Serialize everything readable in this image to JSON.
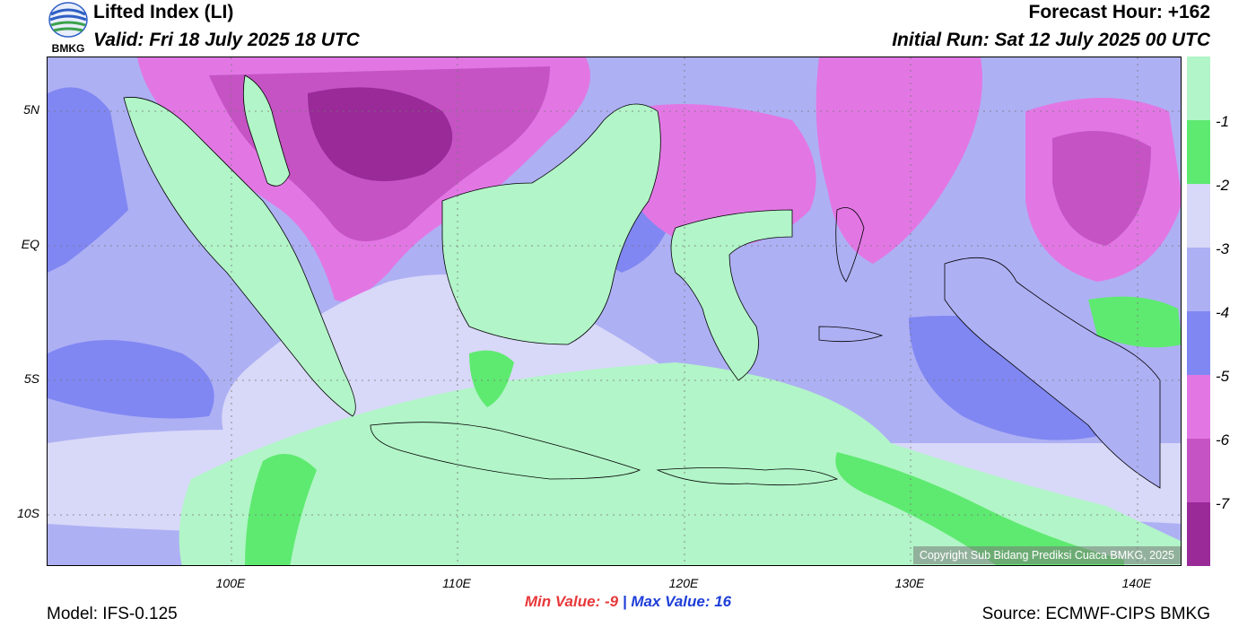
{
  "header": {
    "title": "Lifted Index (LI)",
    "valid": "Valid: Fri 18 July 2025 18 UTC",
    "forecast_hour": "Forecast Hour: +162",
    "initial_run": "Initial Run: Sat 12 July 2025 00 UTC",
    "logo_text": "BMKG"
  },
  "axes": {
    "lat_labels": [
      "5N",
      "EQ",
      "5S",
      "10S"
    ],
    "lon_labels": [
      "100E",
      "110E",
      "120E",
      "130E",
      "140E"
    ]
  },
  "stats": {
    "min_label": "Min Value:  -9",
    "separator": "|",
    "max_label": "Max Value:  16"
  },
  "footer": {
    "model": "Model: IFS-0.125",
    "source": "Source: ECMWF-CIPS BMKG",
    "copyright": "Copyright Sub Bidang Prediksi Cuaca BMKG, 2025"
  },
  "colorbar": {
    "labels": [
      "-1",
      "-2",
      "-3",
      "-4",
      "-5",
      "-6",
      "-7"
    ],
    "colors": [
      "#b2f5c8",
      "#5eea70",
      "#d8d8f8",
      "#aeb0f4",
      "#8087f2",
      "#e277e4",
      "#c553c4",
      "#992a98"
    ]
  },
  "map_colors": {
    "stable": "#b2f5c8",
    "li_m2": "#5eea70",
    "li_m3": "#d8d8f8",
    "li_m4": "#aeb0f4",
    "li_m5": "#8087f2",
    "li_m6": "#e277e4",
    "li_m7": "#c553c4",
    "li_m8": "#992a98"
  }
}
